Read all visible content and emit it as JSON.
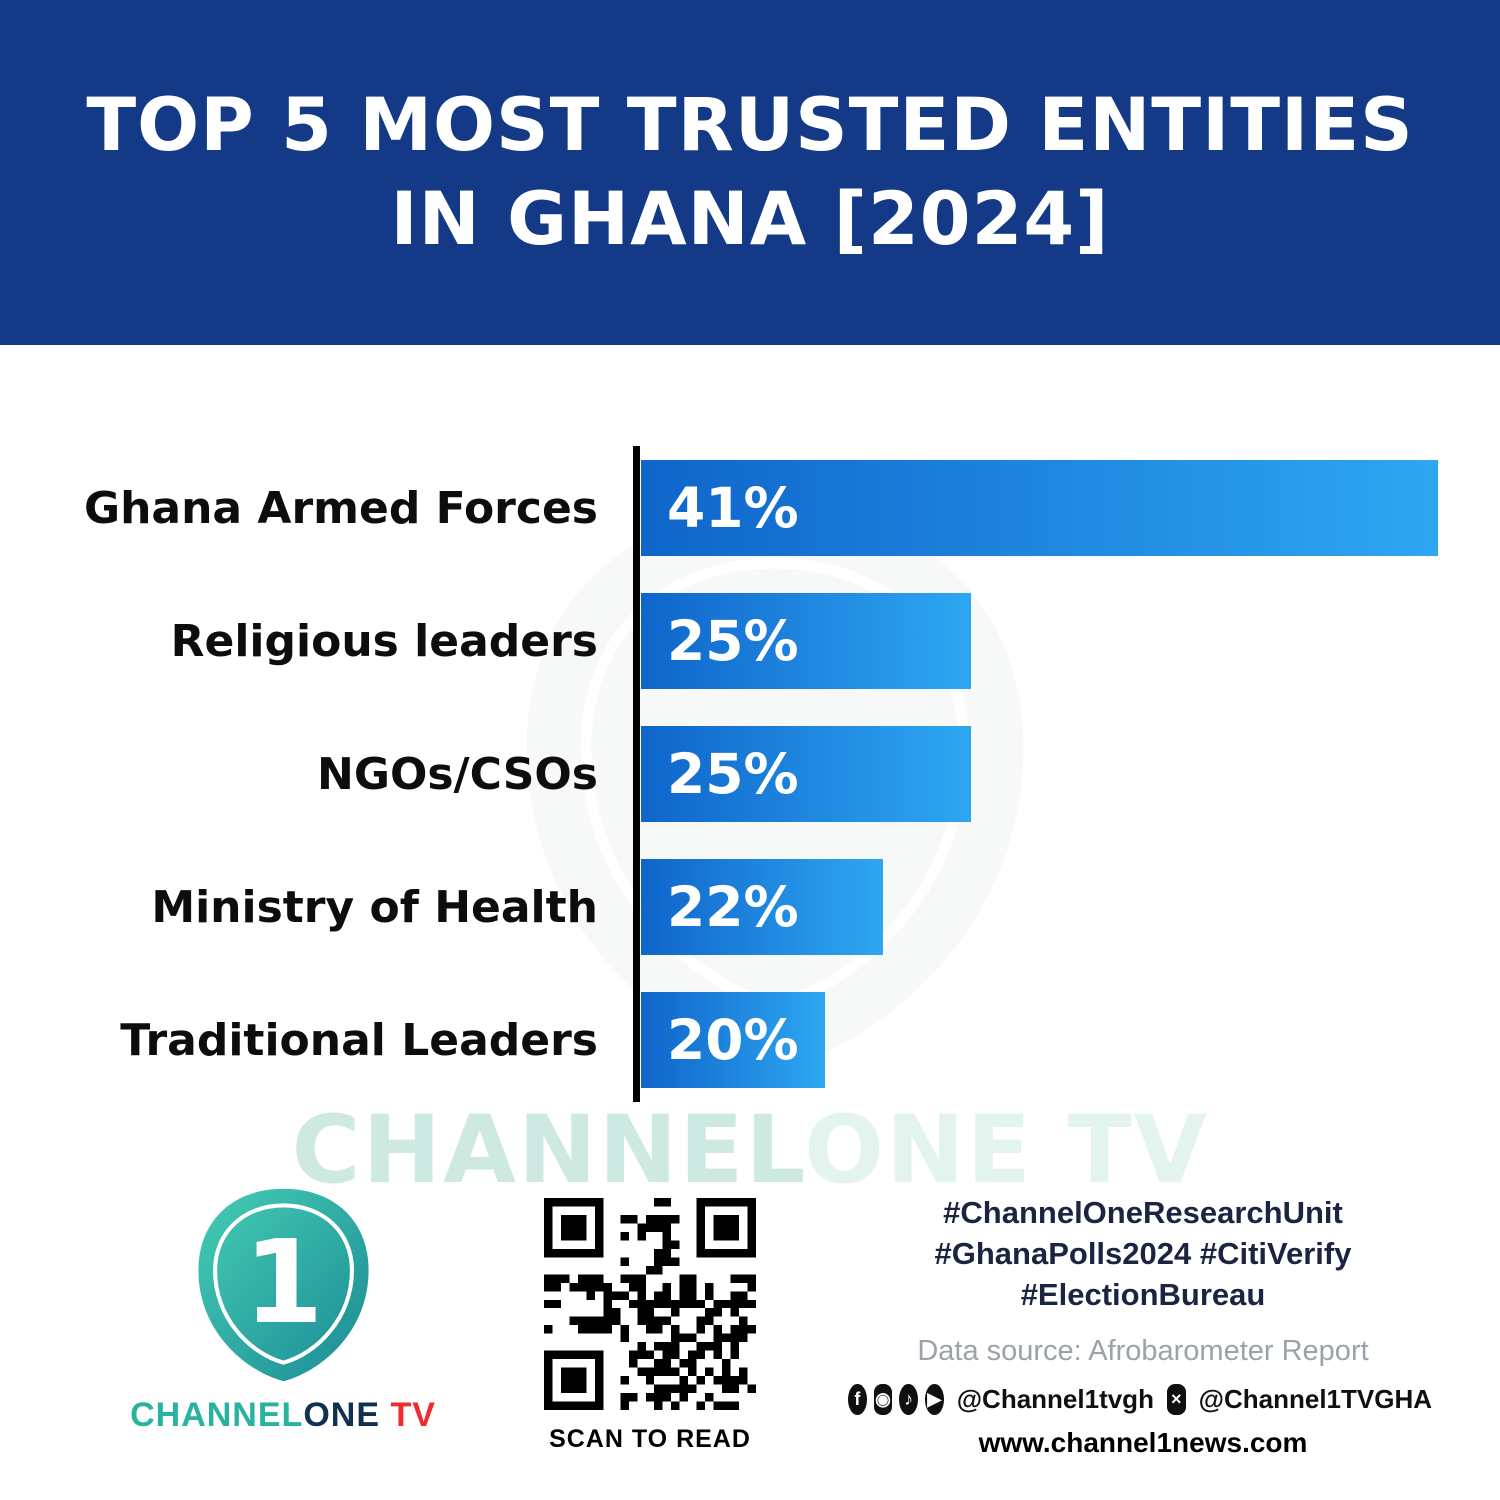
{
  "header": {
    "title_line1": "TOP 5 MOST TRUSTED ENTITIES",
    "title_line2": "IN GHANA [2024]"
  },
  "chart_data": {
    "type": "bar",
    "orientation": "horizontal",
    "title": "Top 5 Most Trusted Entities in Ghana [2024]",
    "categories": [
      "Ghana Armed Forces",
      "Religious leaders",
      "NGOs/CSOs",
      "Ministry of Health",
      "Traditional Leaders"
    ],
    "values": [
      41,
      25,
      25,
      22,
      20
    ],
    "value_labels": [
      "41%",
      "25%",
      "25%",
      "22%",
      "20%"
    ],
    "xlim": [
      0,
      41
    ],
    "grid": false,
    "legend": false
  },
  "watermark": {
    "part1": "CHANNEL",
    "part2": "ONE TV"
  },
  "footer": {
    "logo": {
      "numeral": "1",
      "channel": "CHANNEL",
      "one": "ONE",
      "tv": " TV"
    },
    "qr_caption": "SCAN TO READ",
    "hashtags_line1": "#ChannelOneResearchUnit",
    "hashtags_line2": "#GhanaPolls2024 #CitiVerify",
    "hashtags_line3": "#ElectionBureau",
    "data_source": "Data source: Afrobarometer Report",
    "handle_primary": "@Channel1tvgh",
    "handle_x": "@Channel1TVGHA",
    "website": "www.channel1news.com",
    "icons": {
      "facebook": "f",
      "instagram": "◉",
      "tiktok": "♪",
      "youtube": "▶",
      "x": "×"
    }
  },
  "colors": {
    "header_bg": "#143a87",
    "bar_gradient_start": "#0f65ca",
    "bar_gradient_end": "#2ea7f2",
    "brand_teal": "#28b2a0",
    "brand_navy": "#12304f",
    "brand_red": "#ef2b2d",
    "hashtag_navy": "#1b2440",
    "source_gray": "#9aa2ab",
    "watermark_mint": "#cde9e1"
  }
}
